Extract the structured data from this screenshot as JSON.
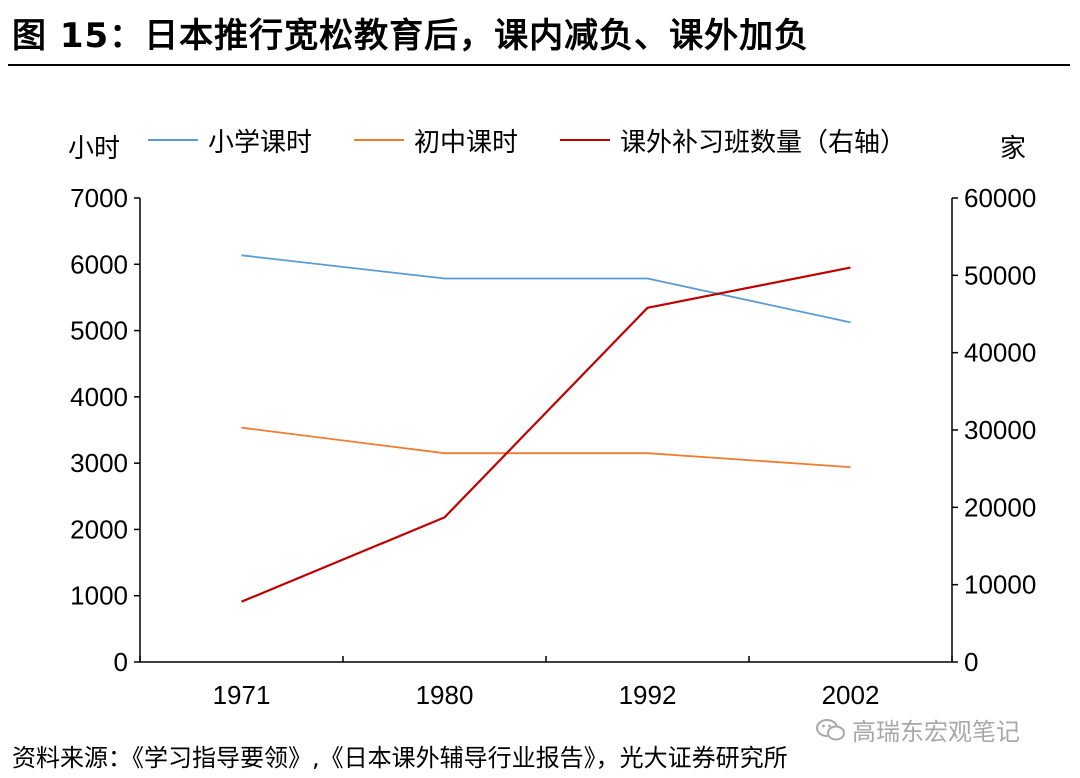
{
  "header": {
    "title": "图 15：日本推行宽松教育后，课内减负、课外加负"
  },
  "units": {
    "left": "小时",
    "right": "家"
  },
  "footer": {
    "source": "资料来源：《学习指导要领》,《日本课外辅导行业报告》，光大证券研究所"
  },
  "watermark": {
    "text": "高瑞东宏观笔记"
  },
  "colors": {
    "primary_school": "#5b9bd5",
    "middle_school": "#ed7d31",
    "tutoring": "#c00000"
  },
  "chart_data": {
    "type": "line",
    "categories": [
      "1971",
      "1980",
      "1992",
      "2002"
    ],
    "series": [
      {
        "name": "小学课时",
        "axis": "left",
        "values": [
          6135,
          5785,
          5785,
          5123
        ]
      },
      {
        "name": "初中课时",
        "axis": "left",
        "values": [
          3535,
          3150,
          3150,
          2940
        ]
      },
      {
        "name": "课外补习班数量（右轴）",
        "axis": "right",
        "values": [
          7800,
          18700,
          45800,
          51000
        ]
      }
    ],
    "y_left": {
      "min": 0,
      "max": 7000,
      "ticks": [
        "0",
        "1000",
        "2000",
        "3000",
        "4000",
        "5000",
        "6000",
        "7000"
      ]
    },
    "y_right": {
      "min": 0,
      "max": 60000,
      "ticks": [
        "0",
        "10000",
        "20000",
        "30000",
        "40000",
        "50000",
        "60000"
      ]
    },
    "legend_position": "top",
    "grid": false
  }
}
